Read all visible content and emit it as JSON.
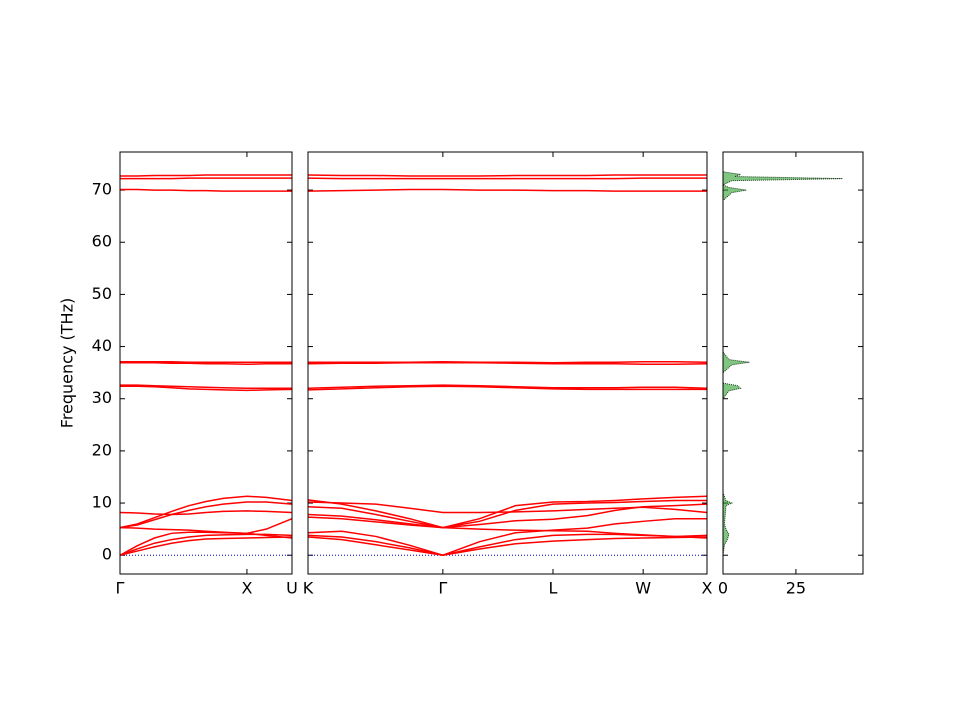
{
  "chart_data": [
    {
      "type": "line",
      "ylabel": "Frequency (THz)",
      "color": "#ff0000",
      "ylim": [
        -3.6,
        77.3
      ],
      "yticks": [
        0,
        10,
        20,
        30,
        40,
        50,
        60,
        70
      ],
      "hline": 0,
      "xlim": [
        0,
        1
      ],
      "xticks": [
        {
          "value": 0,
          "label": "Γ"
        },
        {
          "value": 0.738,
          "label": "X"
        },
        {
          "value": 1,
          "label": "U"
        }
      ],
      "x": [
        0,
        0.1,
        0.2,
        0.3,
        0.4,
        0.5,
        0.6,
        0.738,
        0.85,
        1
      ],
      "series": [
        {
          "values": [
            0,
            0.8,
            1.6,
            2.3,
            2.8,
            3.1,
            3.2,
            3.3,
            3.4,
            3.5
          ]
        },
        {
          "values": [
            0,
            1.2,
            2.3,
            3.0,
            3.5,
            3.8,
            3.9,
            4.0,
            4.0,
            3.8
          ]
        },
        {
          "values": [
            0,
            1.8,
            3.3,
            4.2,
            4.4,
            4.4,
            4.3,
            4.2,
            5.0,
            7.0
          ]
        },
        {
          "values": [
            5.3,
            5.2,
            5.0,
            4.9,
            4.8,
            4.6,
            4.4,
            4.2,
            3.8,
            3.3
          ]
        },
        {
          "values": [
            5.3,
            5.8,
            6.8,
            7.8,
            8.6,
            9.3,
            9.8,
            10.2,
            10.2,
            9.8
          ]
        },
        {
          "values": [
            5.3,
            6.0,
            7.2,
            8.4,
            9.5,
            10.3,
            10.9,
            11.3,
            11.1,
            10.5
          ]
        },
        {
          "values": [
            8.2,
            8.1,
            7.9,
            7.8,
            7.9,
            8.2,
            8.4,
            8.5,
            8.4,
            8.2
          ]
        },
        {
          "values": [
            32.6,
            32.6,
            32.5,
            32.4,
            32.3,
            32.2,
            32.1,
            32.0,
            32.0,
            32.0
          ]
        },
        {
          "values": [
            32.4,
            32.4,
            32.3,
            32.1,
            31.9,
            31.8,
            31.7,
            31.6,
            31.7,
            31.8
          ]
        },
        {
          "values": [
            37.1,
            37.1,
            37.1,
            37.1,
            37.0,
            37.0,
            37.0,
            37.0,
            37.0,
            37.0
          ]
        },
        {
          "values": [
            36.9,
            36.9,
            36.9,
            36.8,
            36.8,
            36.7,
            36.7,
            36.6,
            36.7,
            36.7
          ]
        },
        {
          "values": [
            70.1,
            70.1,
            70.0,
            70.0,
            69.9,
            69.9,
            69.8,
            69.8,
            69.8,
            69.8
          ]
        },
        {
          "values": [
            72.2,
            72.2,
            72.2,
            72.2,
            72.3,
            72.3,
            72.3,
            72.3,
            72.3,
            72.3
          ]
        },
        {
          "values": [
            72.7,
            72.7,
            72.8,
            72.8,
            72.8,
            72.9,
            72.9,
            72.9,
            72.9,
            72.9
          ]
        }
      ]
    },
    {
      "type": "line",
      "color": "#ff0000",
      "ylim": [
        -3.6,
        77.3
      ],
      "hline": 0,
      "xlim": [
        0,
        1
      ],
      "xticks": [
        {
          "value": 0,
          "label": "K"
        },
        {
          "value": 0.338,
          "label": "Γ"
        },
        {
          "value": 0.614,
          "label": "L"
        },
        {
          "value": 0.84,
          "label": "W"
        },
        {
          "value": 1,
          "label": "X"
        }
      ],
      "x": [
        0,
        0.085,
        0.17,
        0.255,
        0.338,
        0.43,
        0.52,
        0.614,
        0.7,
        0.77,
        0.84,
        0.92,
        1
      ],
      "series": [
        {
          "values": [
            3.5,
            3.0,
            2.0,
            1.0,
            0,
            1.2,
            2.2,
            2.7,
            3.0,
            3.2,
            3.3,
            3.4,
            3.5
          ]
        },
        {
          "values": [
            3.8,
            3.5,
            2.6,
            1.4,
            0,
            1.6,
            3.0,
            3.8,
            4.0,
            4.0,
            3.8,
            3.6,
            3.8
          ]
        },
        {
          "values": [
            4.3,
            4.6,
            3.6,
            1.9,
            0,
            2.6,
            4.3,
            4.8,
            5.2,
            6.0,
            6.5,
            7.0,
            7.0
          ]
        },
        {
          "values": [
            7.3,
            7.0,
            6.4,
            5.8,
            5.3,
            5.0,
            4.8,
            4.7,
            4.6,
            4.2,
            3.9,
            3.6,
            3.3
          ]
        },
        {
          "values": [
            7.8,
            7.5,
            6.8,
            6.0,
            5.3,
            5.9,
            6.6,
            6.9,
            7.6,
            8.6,
            9.3,
            9.5,
            9.8
          ]
        },
        {
          "values": [
            9.3,
            9.0,
            7.8,
            6.5,
            5.3,
            6.5,
            8.6,
            9.8,
            10.0,
            10.1,
            10.3,
            10.5,
            10.5
          ]
        },
        {
          "values": [
            10.6,
            9.8,
            8.5,
            7.0,
            5.3,
            7.0,
            9.5,
            10.2,
            10.3,
            10.5,
            10.8,
            11.1,
            11.3
          ]
        },
        {
          "values": [
            10.2,
            10.0,
            9.8,
            9.0,
            8.2,
            8.2,
            8.3,
            8.5,
            8.8,
            9.0,
            9.2,
            8.8,
            8.2
          ]
        },
        {
          "values": [
            32.0,
            32.2,
            32.4,
            32.5,
            32.6,
            32.5,
            32.3,
            32.1,
            32.1,
            32.1,
            32.2,
            32.2,
            32.0
          ]
        },
        {
          "values": [
            31.7,
            31.9,
            32.1,
            32.3,
            32.4,
            32.3,
            32.1,
            31.9,
            31.8,
            31.8,
            31.8,
            31.8,
            31.8
          ]
        },
        {
          "values": [
            37.0,
            37.0,
            37.0,
            37.0,
            37.1,
            37.0,
            37.0,
            36.9,
            37.0,
            37.0,
            37.1,
            37.1,
            37.0
          ]
        },
        {
          "values": [
            36.7,
            36.8,
            36.8,
            36.9,
            36.9,
            36.9,
            36.8,
            36.7,
            36.7,
            36.7,
            36.6,
            36.6,
            36.7
          ]
        },
        {
          "values": [
            69.8,
            69.9,
            70.0,
            70.1,
            70.1,
            70.0,
            70.0,
            69.9,
            69.9,
            69.8,
            69.8,
            69.8,
            69.8
          ]
        },
        {
          "values": [
            72.3,
            72.2,
            72.2,
            72.2,
            72.2,
            72.2,
            72.2,
            72.2,
            72.2,
            72.2,
            72.3,
            72.3,
            72.3
          ]
        },
        {
          "values": [
            72.9,
            72.8,
            72.8,
            72.7,
            72.7,
            72.7,
            72.8,
            72.8,
            72.8,
            72.9,
            72.9,
            72.9,
            72.9
          ]
        }
      ]
    },
    {
      "type": "dos",
      "color": "#2ca02c",
      "ylim": [
        -3.6,
        77.3
      ],
      "xlim": [
        0,
        48
      ],
      "xticks": [
        0,
        25
      ],
      "y": [
        0,
        2,
        3,
        4,
        5,
        6,
        8,
        9.5,
        10,
        10.5,
        12,
        30,
        31.5,
        32,
        32.5,
        33,
        35,
        36.5,
        37,
        37.5,
        39,
        68,
        69.5,
        70,
        70.5,
        71,
        71.8,
        72.2,
        72.6,
        73,
        73.5,
        77
      ],
      "values": [
        0,
        0.5,
        1.5,
        2,
        1,
        0.5,
        0.8,
        1,
        3,
        1,
        0,
        0,
        2,
        6,
        5,
        0,
        0,
        3,
        9,
        2,
        0,
        0,
        3,
        8,
        2,
        0,
        3,
        41,
        4,
        6,
        0,
        0
      ]
    }
  ]
}
